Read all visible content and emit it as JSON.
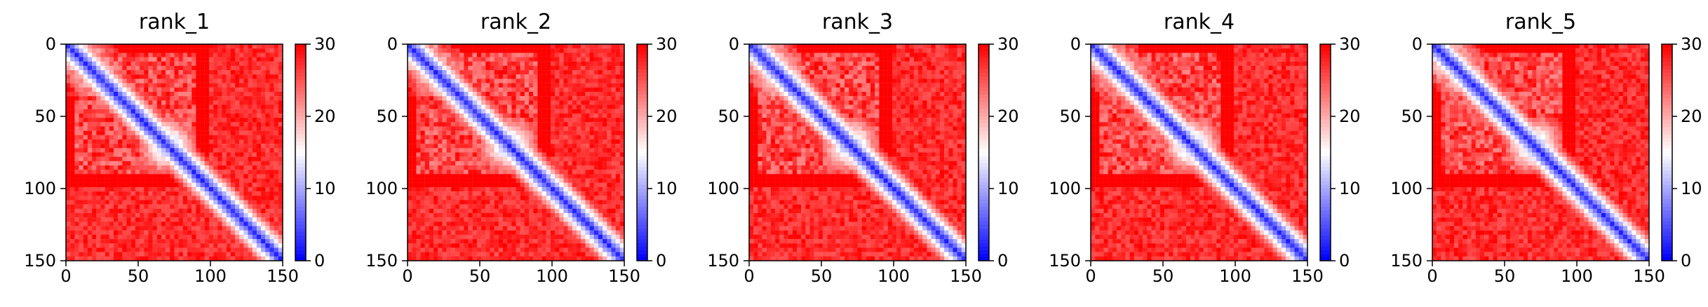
{
  "chart_data": [
    {
      "type": "heatmap",
      "title": "rank_1",
      "xlabel": "",
      "ylabel": "",
      "matrix_size": 150,
      "xlim": [
        0,
        150
      ],
      "ylim": [
        150,
        0
      ],
      "xticks": [
        "0",
        "50",
        "100",
        "150"
      ],
      "yticks": [
        "0",
        "50",
        "100",
        "150"
      ],
      "colorbar": {
        "vmin": 0,
        "vmax": 30,
        "ticks": [
          "0",
          "10",
          "20",
          "30"
        ],
        "colormap": "bwr"
      },
      "diagonal_low_band": true,
      "low_block": {
        "start": 50,
        "end": 90
      },
      "high_value": 30
    },
    {
      "type": "heatmap",
      "title": "rank_2",
      "xlabel": "",
      "ylabel": "",
      "matrix_size": 150,
      "xlim": [
        0,
        150
      ],
      "ylim": [
        150,
        0
      ],
      "xticks": [
        "0",
        "50",
        "100",
        "150"
      ],
      "yticks": [
        "0",
        "50",
        "100",
        "150"
      ],
      "colorbar": {
        "vmin": 0,
        "vmax": 30,
        "ticks": [
          "0",
          "10",
          "20",
          "30"
        ],
        "colormap": "bwr"
      },
      "diagonal_low_band": true,
      "low_block": {
        "start": 50,
        "end": 90
      },
      "high_value": 30
    },
    {
      "type": "heatmap",
      "title": "rank_3",
      "xlabel": "",
      "ylabel": "",
      "matrix_size": 150,
      "xlim": [
        0,
        150
      ],
      "ylim": [
        150,
        0
      ],
      "xticks": [
        "0",
        "50",
        "100",
        "150"
      ],
      "yticks": [
        "0",
        "50",
        "100",
        "150"
      ],
      "colorbar": {
        "vmin": 0,
        "vmax": 30,
        "ticks": [
          "0",
          "10",
          "20",
          "30"
        ],
        "colormap": "bwr"
      },
      "diagonal_low_band": true,
      "low_block": {
        "start": 50,
        "end": 90
      },
      "high_value": 30
    },
    {
      "type": "heatmap",
      "title": "rank_4",
      "xlabel": "",
      "ylabel": "",
      "matrix_size": 150,
      "xlim": [
        0,
        150
      ],
      "ylim": [
        150,
        0
      ],
      "xticks": [
        "0",
        "50",
        "100",
        "150"
      ],
      "yticks": [
        "0",
        "50",
        "100",
        "150"
      ],
      "colorbar": {
        "vmin": 0,
        "vmax": 30,
        "ticks": [
          "0",
          "10",
          "20",
          "30"
        ],
        "colormap": "bwr"
      },
      "diagonal_low_band": true,
      "low_block": {
        "start": 50,
        "end": 90
      },
      "high_value": 30
    },
    {
      "type": "heatmap",
      "title": "rank_5",
      "xlabel": "",
      "ylabel": "",
      "matrix_size": 150,
      "xlim": [
        0,
        150
      ],
      "ylim": [
        150,
        0
      ],
      "xticks": [
        "0",
        "50",
        "100",
        "150"
      ],
      "yticks": [
        "0",
        "50",
        "100",
        "150"
      ],
      "colorbar": {
        "vmin": 0,
        "vmax": 30,
        "ticks": [
          "0",
          "10",
          "20",
          "30"
        ],
        "colormap": "bwr"
      },
      "diagonal_low_band": true,
      "low_block": {
        "start": 50,
        "end": 90
      },
      "high_value": 30
    }
  ],
  "colors": {
    "low": "#0000ff",
    "mid": "#ffffff",
    "high": "#ff0000",
    "axis": "#000000"
  }
}
